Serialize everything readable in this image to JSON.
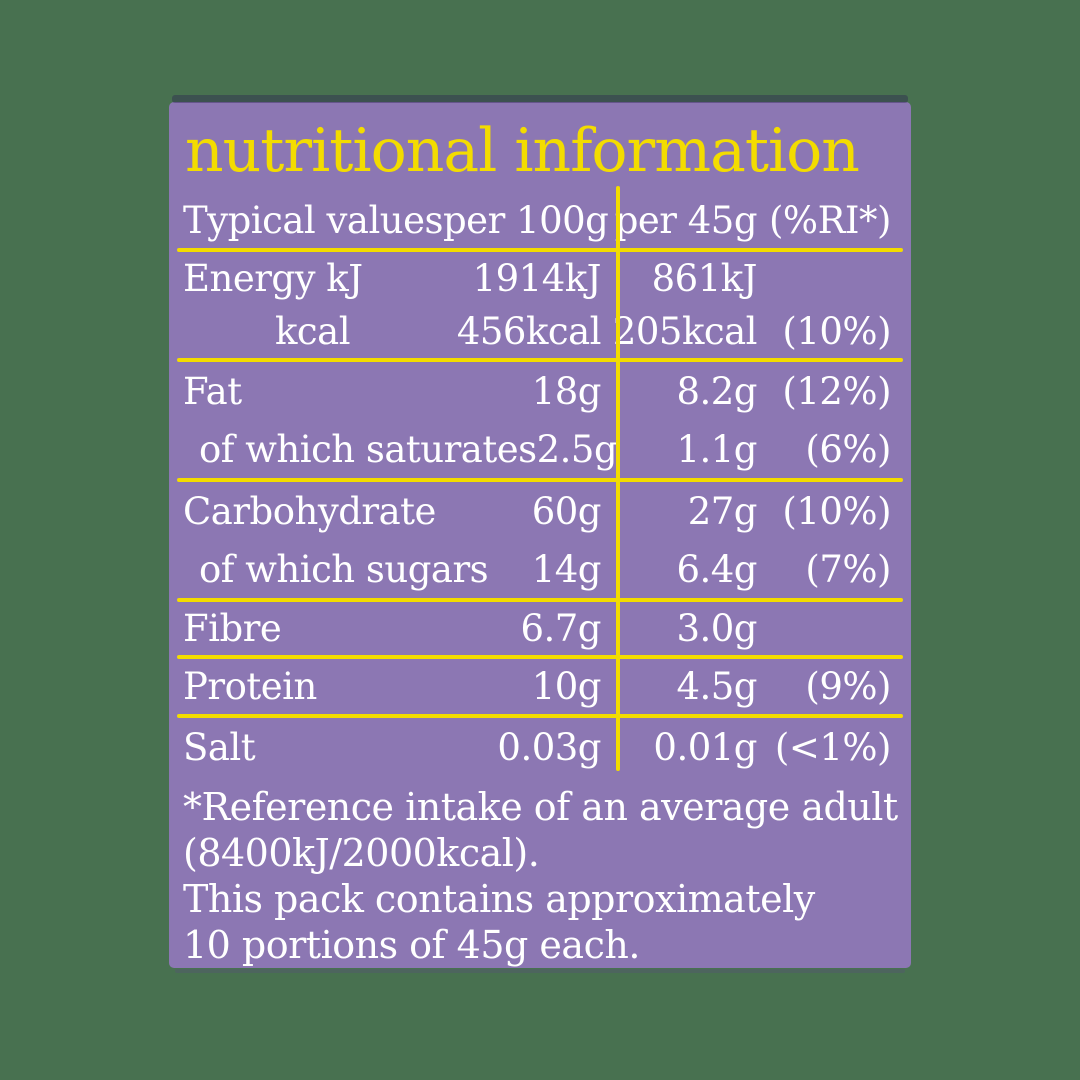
{
  "colors": {
    "background_green": "#487150",
    "panel_purple": "#8c77b3",
    "accent_yellow": "#f3dc00",
    "text_white": "#ffffff"
  },
  "panel": {
    "title": "nutritional information",
    "header": {
      "label": "Typical values",
      "per100": "per 100g",
      "per45": "per 45g",
      "ri": "(%RI*)"
    },
    "sections": [
      {
        "rows": [
          {
            "label": "Energy kJ",
            "indent": 0,
            "per100g": "1914kJ",
            "per45g": "861kJ",
            "pct": ""
          },
          {
            "label": "kcal",
            "indent": 2,
            "per100g": "456kcal",
            "per45g": "205kcal",
            "pct": "(10%)"
          }
        ]
      },
      {
        "rows": [
          {
            "label": "Fat",
            "indent": 0,
            "per100g": "18g",
            "per45g": "8.2g",
            "pct": "(12%)"
          },
          {
            "label": "of which saturates",
            "indent": 1,
            "per100g": "2.5g",
            "per45g": "1.1g",
            "pct": "(6%)"
          }
        ]
      },
      {
        "rows": [
          {
            "label": "Carbohydrate",
            "indent": 0,
            "per100g": "60g",
            "per45g": "27g",
            "pct": "(10%)"
          },
          {
            "label": "of which sugars",
            "indent": 1,
            "per100g": "14g",
            "per45g": "6.4g",
            "pct": "(7%)"
          }
        ]
      },
      {
        "rows": [
          {
            "label": "Fibre",
            "indent": 0,
            "per100g": "6.7g",
            "per45g": "3.0g",
            "pct": ""
          }
        ]
      },
      {
        "rows": [
          {
            "label": "Protein",
            "indent": 0,
            "per100g": "10g",
            "per45g": "4.5g",
            "pct": "(9%)"
          }
        ]
      },
      {
        "rows": [
          {
            "label": "Salt",
            "indent": 0,
            "per100g": "0.03g",
            "per45g": "0.01g",
            "pct": "(<1%)"
          }
        ]
      }
    ],
    "footnote_lines": [
      "*Reference intake of an average adult",
      "(8400kJ/2000kcal).",
      "This pack contains approximately",
      "10 portions of 45g each."
    ]
  }
}
